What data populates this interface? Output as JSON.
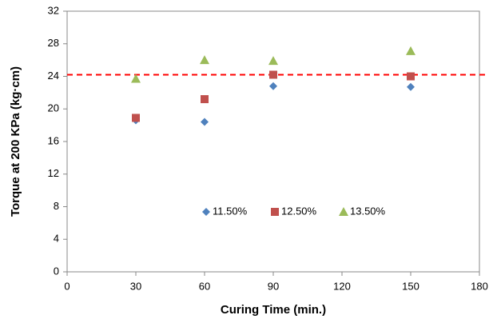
{
  "chart_data": {
    "type": "scatter",
    "xlabel": "Curing Time (min.)",
    "ylabel": "Torque at 200 KPa (kg·cm)",
    "series": [
      {
        "name": "11.50%",
        "color": "#4f81bd",
        "marker": "diamond",
        "x": [
          30,
          60,
          90,
          150
        ],
        "values": [
          18.6,
          18.4,
          22.8,
          22.7
        ]
      },
      {
        "name": "12.50%",
        "color": "#c0504d",
        "marker": "square",
        "x": [
          30,
          60,
          90,
          150
        ],
        "values": [
          18.9,
          21.2,
          24.2,
          24.0
        ]
      },
      {
        "name": "13.50%",
        "color": "#9bbb59",
        "marker": "triangle",
        "x": [
          30,
          60,
          90,
          150
        ],
        "values": [
          23.7,
          26.0,
          25.9,
          27.1
        ]
      }
    ],
    "reference_line": {
      "value": 24.2,
      "color": "#ff0000"
    },
    "xlim": [
      0,
      180
    ],
    "xticks": [
      0,
      30,
      60,
      90,
      120,
      150,
      180
    ],
    "ylim": [
      0,
      32
    ],
    "yticks": [
      0,
      4,
      8,
      12,
      16,
      20,
      24,
      28,
      32
    ],
    "grid": false
  }
}
